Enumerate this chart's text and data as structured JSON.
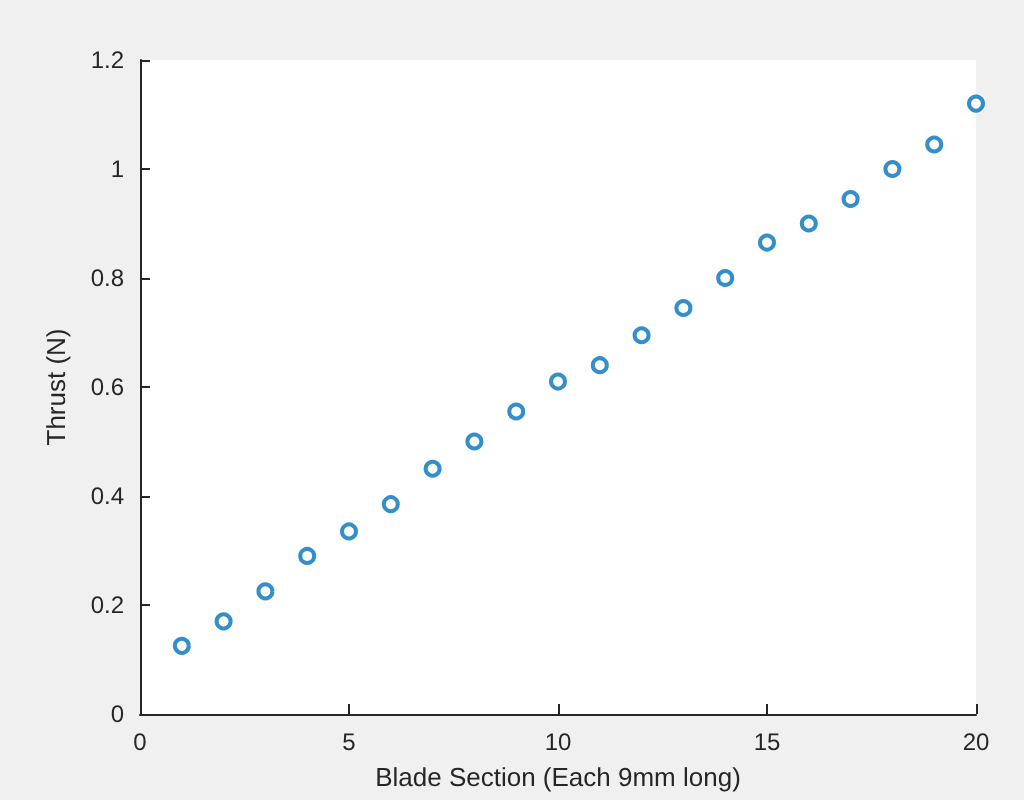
{
  "chart_data": {
    "type": "scatter",
    "xlabel": "Blade Section (Each 9mm long)",
    "ylabel": "Thrust (N)",
    "x": [
      1,
      2,
      3,
      4,
      5,
      6,
      7,
      8,
      9,
      10,
      11,
      12,
      13,
      14,
      15,
      16,
      17,
      18,
      19,
      20
    ],
    "series": [
      {
        "color": "#0072bd",
        "values": [
          0.125,
          0.17,
          0.225,
          0.29,
          0.335,
          0.385,
          0.45,
          0.5,
          0.555,
          0.61,
          0.64,
          0.695,
          0.745,
          0.8,
          0.865,
          0.9,
          0.945,
          1.0,
          1.045,
          1.12
        ]
      }
    ],
    "xlim": [
      0,
      20
    ],
    "xticks": [
      0,
      5,
      10,
      15,
      20
    ],
    "ylim": [
      0,
      1.2
    ],
    "yticks": [
      0,
      0.2,
      0.4,
      0.6,
      0.8,
      1,
      1.2
    ],
    "marker": "circle",
    "grid": false
  }
}
